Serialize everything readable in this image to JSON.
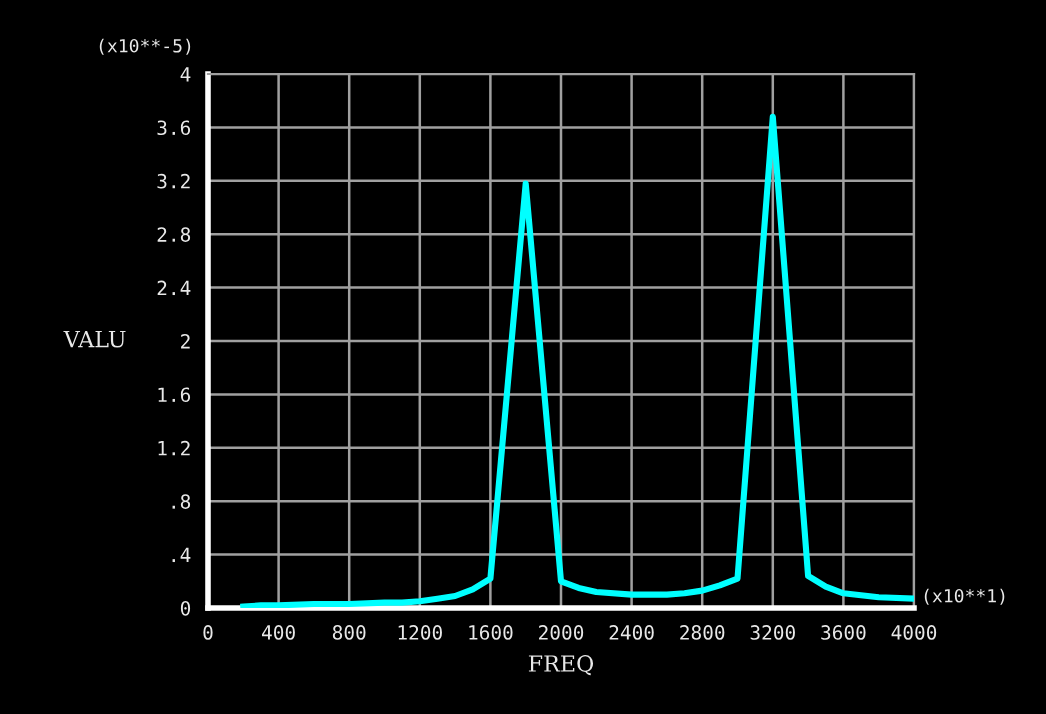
{
  "chart_data": {
    "type": "line",
    "xlabel": "FREQ",
    "ylabel": "VALU",
    "annotations": [
      "(x10**-5)",
      "(x10**1)"
    ],
    "x": [
      200,
      300,
      400,
      600,
      800,
      1000,
      1100,
      1200,
      1300,
      1400,
      1500,
      1600,
      1800,
      2000,
      2100,
      2200,
      2400,
      2600,
      2700,
      2800,
      2900,
      3000,
      3200,
      3400,
      3500,
      3600,
      3800,
      4000
    ],
    "series": [
      {
        "color": "#00ffff",
        "values": [
          0.01,
          0.02,
          0.02,
          0.03,
          0.03,
          0.04,
          0.04,
          0.05,
          0.07,
          0.09,
          0.14,
          0.22,
          3.18,
          0.2,
          0.15,
          0.12,
          0.1,
          0.1,
          0.11,
          0.13,
          0.17,
          0.22,
          3.68,
          0.24,
          0.16,
          0.11,
          0.08,
          0.07
        ]
      }
    ],
    "xlim": [
      0,
      4000
    ],
    "ylim": [
      0,
      4
    ],
    "xticks": [
      0,
      400,
      800,
      1200,
      1600,
      2000,
      2400,
      2800,
      3200,
      3600,
      4000
    ],
    "yticks": [
      0,
      {
        "value": 0.4,
        "label": ".4"
      },
      {
        "value": 0.8,
        "label": ".8"
      },
      {
        "value": 1.2,
        "label": "1.2"
      },
      {
        "value": 1.6,
        "label": "1.6"
      },
      2,
      {
        "value": 2.4,
        "label": "2.4"
      },
      {
        "value": 2.8,
        "label": "2.8"
      },
      {
        "value": 3.2,
        "label": "3.2"
      },
      {
        "value": 3.6,
        "label": "3.6"
      },
      4
    ],
    "grid": true,
    "marker": "none",
    "line_style": "solid"
  }
}
